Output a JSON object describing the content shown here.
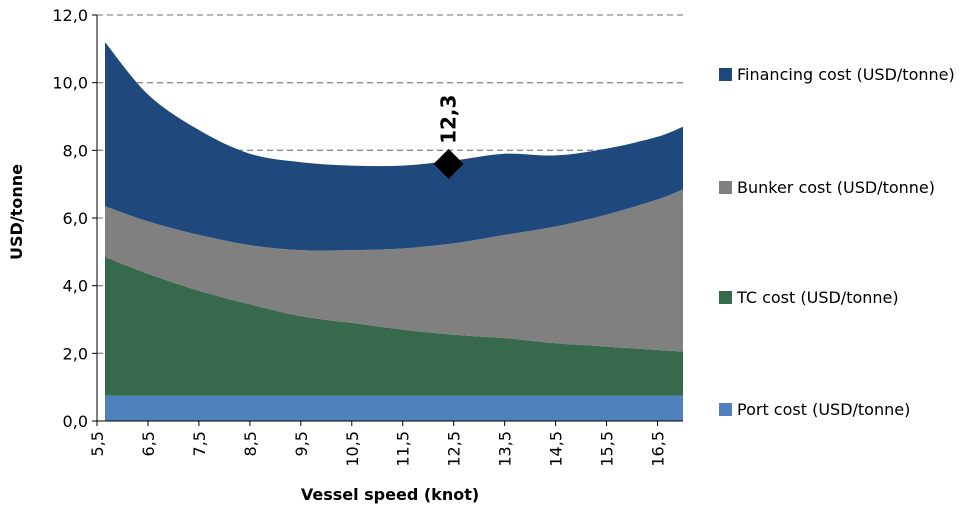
{
  "chart_data": {
    "type": "area",
    "stacked": true,
    "xlabel": "Vessel speed (knot)",
    "ylabel": "USD/tonne",
    "ylim": [
      0,
      12
    ],
    "xlim": [
      5.5,
      17.0
    ],
    "y_ticks": [
      "0,0",
      "2,0",
      "4,0",
      "6,0",
      "8,0",
      "10,0",
      "12,0"
    ],
    "y_tick_values": [
      0,
      2,
      4,
      6,
      8,
      10,
      12
    ],
    "x_ticks": [
      "5,5",
      "6,5",
      "7,5",
      "8,5",
      "9,5",
      "10,5",
      "11,5",
      "12,5",
      "13,5",
      "14,5",
      "15,5",
      "16,5"
    ],
    "x_tick_values": [
      5.5,
      6.5,
      7.5,
      8.5,
      9.5,
      10.5,
      11.5,
      12.5,
      13.5,
      14.5,
      15.5,
      16.5
    ],
    "grid": "horizontal-dashed",
    "legend_position": "right",
    "x": [
      5.5,
      6.5,
      7.5,
      8.5,
      9.5,
      10.5,
      11.5,
      12.5,
      13.5,
      14.5,
      15.5,
      16.5,
      17.0
    ],
    "series": [
      {
        "name": "Port cost (USD/tonne)",
        "color": "#4f81bd",
        "values": [
          0.75,
          0.75,
          0.75,
          0.75,
          0.75,
          0.75,
          0.75,
          0.75,
          0.75,
          0.75,
          0.75,
          0.75,
          0.75
        ]
      },
      {
        "name": "TC cost (USD/tonne)",
        "color": "#376a4c",
        "values": [
          4.1,
          3.6,
          3.1,
          2.7,
          2.35,
          2.15,
          1.95,
          1.8,
          1.7,
          1.55,
          1.45,
          1.35,
          1.3
        ]
      },
      {
        "name": "Bunker cost (USD/tonne)",
        "color": "#808080",
        "values": [
          1.5,
          1.55,
          1.65,
          1.75,
          1.95,
          2.15,
          2.4,
          2.7,
          3.05,
          3.45,
          3.9,
          4.45,
          4.8
        ]
      },
      {
        "name": "Financing cost (USD/tonne)",
        "color": "#1f497d",
        "values": [
          4.85,
          3.75,
          3.1,
          2.7,
          2.6,
          2.5,
          2.45,
          2.45,
          2.4,
          2.1,
          1.95,
          1.85,
          1.85
        ]
      }
    ],
    "marker": {
      "x": 12.4,
      "y": 7.6,
      "label": "12,3",
      "shape": "diamond"
    }
  }
}
